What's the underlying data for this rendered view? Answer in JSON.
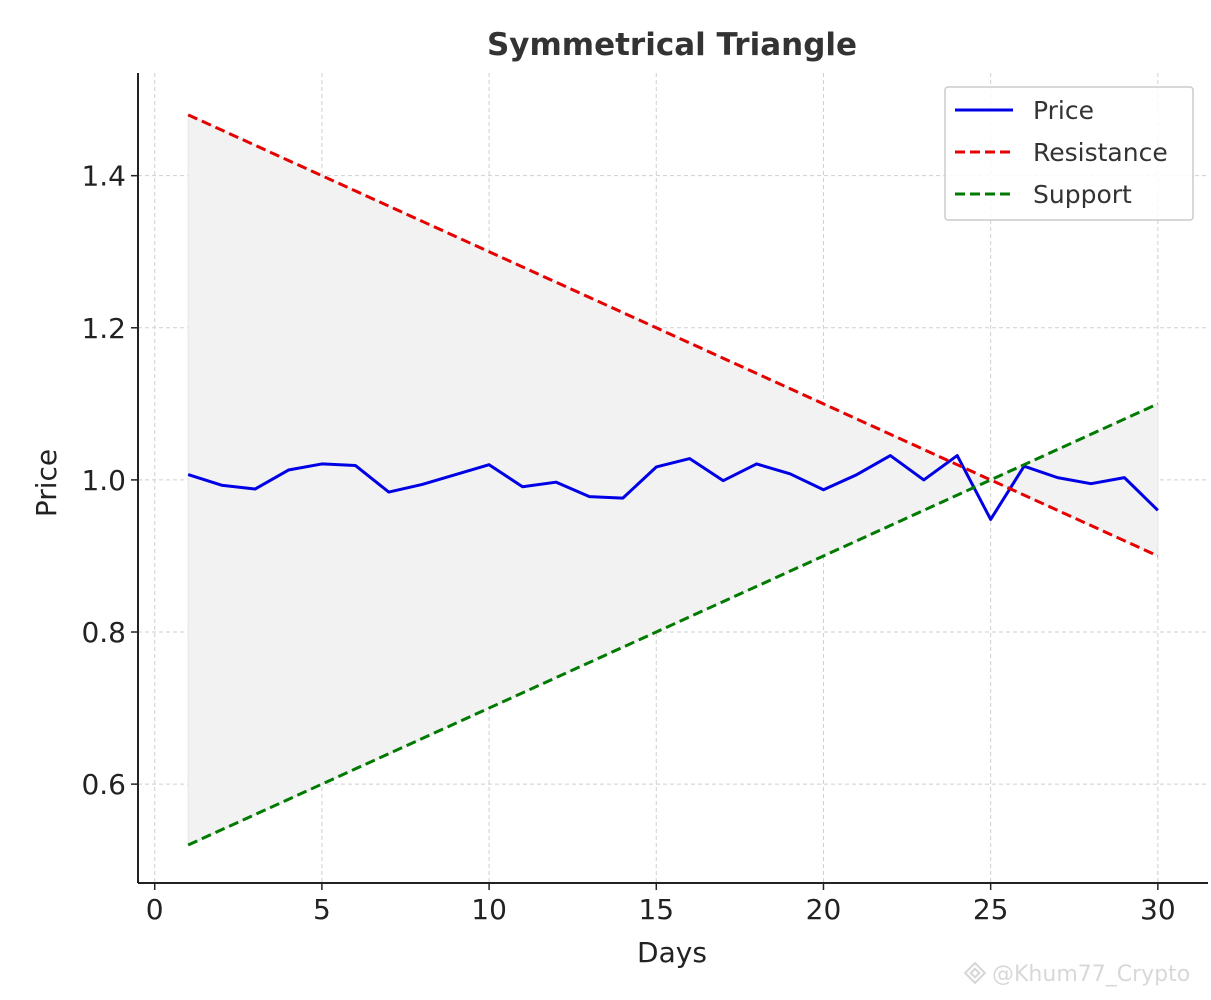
{
  "chart_data": {
    "type": "line",
    "title": "Symmetrical Triangle",
    "xlabel": "Days",
    "ylabel": "Price",
    "xlim": [
      -0.5,
      31.5
    ],
    "ylim": [
      0.47,
      1.535
    ],
    "xticks": [
      0,
      5,
      10,
      15,
      20,
      25,
      30
    ],
    "yticks": [
      0.6,
      0.8,
      1.0,
      1.2,
      1.4
    ],
    "xtick_labels": [
      "0",
      "5",
      "10",
      "15",
      "20",
      "25",
      "30"
    ],
    "ytick_labels": [
      "0.6",
      "0.8",
      "1.0",
      "1.2",
      "1.4"
    ],
    "grid": true,
    "legend_position": "top-right",
    "x": [
      1,
      2,
      3,
      4,
      5,
      6,
      7,
      8,
      9,
      10,
      11,
      12,
      13,
      14,
      15,
      16,
      17,
      18,
      19,
      20,
      21,
      22,
      23,
      24,
      25,
      26,
      27,
      28,
      29,
      30
    ],
    "series": [
      {
        "name": "Price",
        "style": "solid",
        "color": "#0000e6",
        "values": [
          1.007,
          0.993,
          0.988,
          1.013,
          1.021,
          1.019,
          0.984,
          0.994,
          1.007,
          1.02,
          0.991,
          0.997,
          0.978,
          0.976,
          1.017,
          1.028,
          0.999,
          1.021,
          1.008,
          0.987,
          1.007,
          1.032,
          1.0,
          1.032,
          0.948,
          1.018,
          1.003,
          0.995,
          1.003,
          0.96
        ]
      },
      {
        "name": "Resistance",
        "style": "dashed",
        "color": "#e60000",
        "values": [
          1.48,
          1.46,
          1.44,
          1.42,
          1.4,
          1.38,
          1.36,
          1.34,
          1.32,
          1.3,
          1.28,
          1.26,
          1.24,
          1.22,
          1.2,
          1.18,
          1.16,
          1.14,
          1.12,
          1.1,
          1.08,
          1.06,
          1.04,
          1.02,
          1.0,
          0.98,
          0.96,
          0.94,
          0.92,
          0.9
        ]
      },
      {
        "name": "Support",
        "style": "dashed",
        "color": "#007a00",
        "values": [
          0.52,
          0.54,
          0.56,
          0.58,
          0.6,
          0.62,
          0.64,
          0.66,
          0.68,
          0.7,
          0.72,
          0.74,
          0.76,
          0.78,
          0.8,
          0.82,
          0.84,
          0.86,
          0.88,
          0.9,
          0.92,
          0.94,
          0.96,
          0.98,
          1.0,
          1.02,
          1.04,
          1.06,
          1.08,
          1.1
        ]
      }
    ],
    "fill_between": {
      "upper": "Resistance",
      "lower": "Support",
      "color": "#f2f2f2"
    }
  },
  "watermark": "@Khum77_Crypto"
}
